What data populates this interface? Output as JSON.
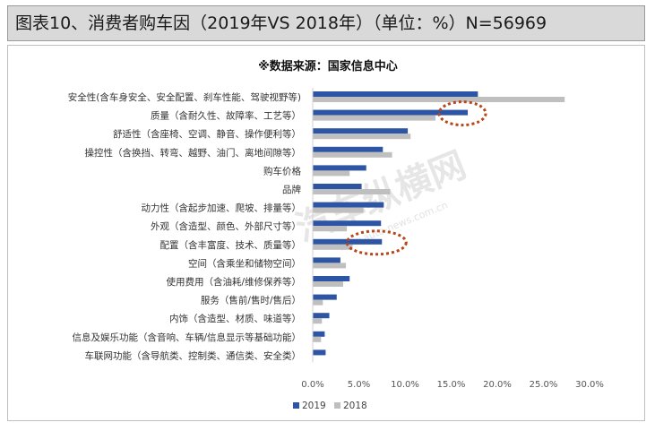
{
  "header": {
    "title": "图表10、消费者购车因（2019年VS 2018年）（单位：%）N=56969"
  },
  "chart_data": {
    "type": "bar",
    "orientation": "horizontal",
    "title": "※数据来源：国家信息中心",
    "categories": [
      "安全性(含车身安全、安全配置、刹车性能、驾驶视野等)",
      "质量（含耐久性、故障率、工艺等）",
      "舒适性（含座椅、空调、静音、操作便利等）",
      "操控性（含换挡、转弯、越野、油门、离地间隙等）",
      "购车价格",
      "品牌",
      "动力性（含起步加速、爬坡、排量等）",
      "外观（含造型、颜色、外部尺寸等）",
      "配置（含丰富度、技术、质量等）",
      "空间（含乘坐和储物空间）",
      "使用费用（含油耗/维修保养等）",
      "服务（售前/售时/售后）",
      "内饰（含造型、材质、味道等）",
      "信息及娱乐功能（含音响、车辆/信息显示等基础功能）",
      "车联网功能（含导航类、控制类、通信类、安全类）"
    ],
    "series": [
      {
        "name": "2019",
        "color": "#2e55a3",
        "values": [
          17.9,
          16.8,
          10.3,
          7.6,
          5.8,
          5.3,
          7.7,
          7.4,
          7.5,
          3.0,
          4.0,
          2.6,
          1.8,
          1.3,
          1.4
        ]
      },
      {
        "name": "2018",
        "color": "#bfbfbf",
        "values": [
          27.3,
          13.3,
          10.6,
          8.6,
          4.0,
          8.4,
          5.5,
          3.7,
          4.3,
          3.6,
          3.3,
          1.1,
          1.0,
          0.9,
          0.0
        ]
      }
    ],
    "xlim": [
      0,
      30
    ],
    "xticks": [
      "0.0%",
      "5.0%",
      "10.0%",
      "15.0%",
      "20.0%",
      "25.0%",
      "30.0%"
    ],
    "grid": false,
    "legend_position": "bottom",
    "annotations": [
      "circle around 质量 2019 bar end",
      "circle around 配置 2019 bar end"
    ],
    "watermark": "汽车纵横网 www.auto-news.com.cn"
  }
}
